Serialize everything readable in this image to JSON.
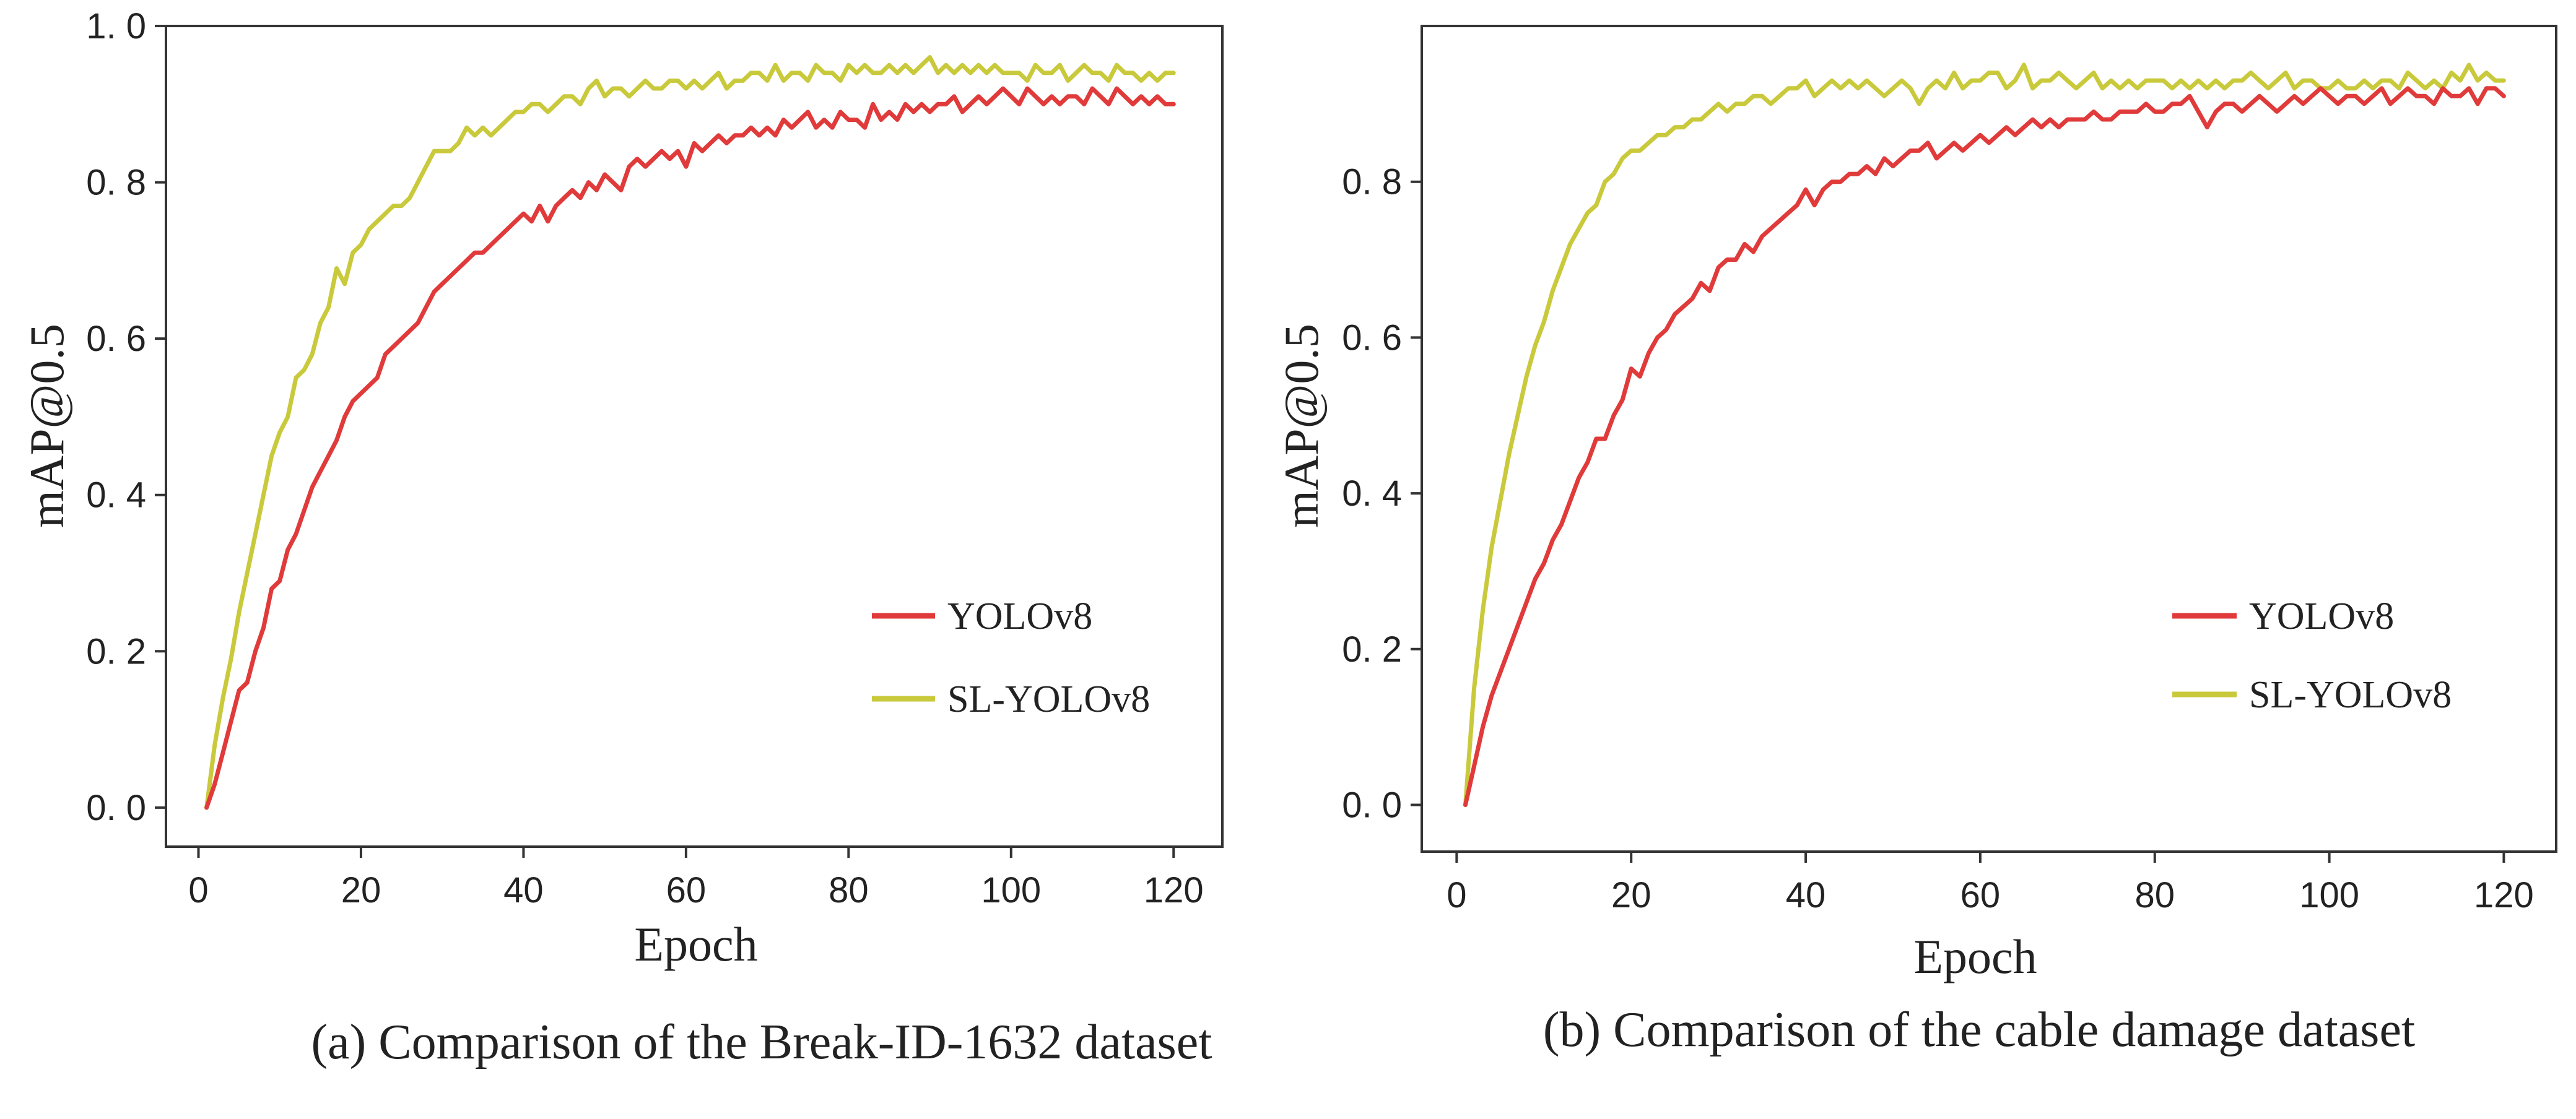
{
  "colors": {
    "yolov8": "#e03a3a",
    "sl_yolov8": "#c9c93c",
    "axis": "#333333"
  },
  "chart_data": [
    {
      "type": "line",
      "caption": "(a) Comparison of the Break-ID-1632 dataset",
      "xlabel": "Epoch",
      "ylabel": "mAP@0.5",
      "xlim": [
        -4,
        126
      ],
      "ylim": [
        -0.05,
        1.0
      ],
      "xticks": [
        0,
        20,
        40,
        60,
        80,
        100,
        120
      ],
      "xtick_labels": [
        "0",
        "20",
        "40",
        "60",
        "80",
        "100",
        "120"
      ],
      "yticks": [
        0.0,
        0.2,
        0.4,
        0.6,
        0.8,
        1.0
      ],
      "ytick_labels": [
        "0. 0",
        "0. 2",
        "0. 4",
        "0. 6",
        "0. 8",
        "1. 0"
      ],
      "grid": false,
      "legend": "center-right",
      "series": [
        {
          "name": "YOLOv8",
          "color": "#e03a3a",
          "x": [
            1,
            2,
            3,
            4,
            5,
            6,
            7,
            8,
            9,
            10,
            11,
            12,
            13,
            14,
            15,
            16,
            17,
            18,
            19,
            20,
            21,
            22,
            23,
            24,
            25,
            26,
            27,
            28,
            29,
            30,
            31,
            32,
            33,
            34,
            35,
            36,
            37,
            38,
            39,
            40,
            41,
            42,
            43,
            44,
            45,
            46,
            47,
            48,
            49,
            50,
            51,
            52,
            53,
            54,
            55,
            56,
            57,
            58,
            59,
            60,
            61,
            62,
            63,
            64,
            65,
            66,
            67,
            68,
            69,
            70,
            71,
            72,
            73,
            74,
            75,
            76,
            77,
            78,
            79,
            80,
            81,
            82,
            83,
            84,
            85,
            86,
            87,
            88,
            89,
            90,
            91,
            92,
            93,
            94,
            95,
            96,
            97,
            98,
            99,
            100,
            101,
            102,
            103,
            104,
            105,
            106,
            107,
            108,
            109,
            110,
            111,
            112,
            113,
            114,
            115,
            116,
            117,
            118,
            119,
            120
          ],
          "y": [
            0.0,
            0.03,
            0.07,
            0.11,
            0.15,
            0.16,
            0.2,
            0.23,
            0.28,
            0.29,
            0.33,
            0.35,
            0.38,
            0.41,
            0.43,
            0.45,
            0.47,
            0.5,
            0.52,
            0.53,
            0.54,
            0.55,
            0.58,
            0.59,
            0.6,
            0.61,
            0.62,
            0.64,
            0.66,
            0.67,
            0.68,
            0.69,
            0.7,
            0.71,
            0.71,
            0.72,
            0.73,
            0.74,
            0.75,
            0.76,
            0.75,
            0.77,
            0.75,
            0.77,
            0.78,
            0.79,
            0.78,
            0.8,
            0.79,
            0.81,
            0.8,
            0.79,
            0.82,
            0.83,
            0.82,
            0.83,
            0.84,
            0.83,
            0.84,
            0.82,
            0.85,
            0.84,
            0.85,
            0.86,
            0.85,
            0.86,
            0.86,
            0.87,
            0.86,
            0.87,
            0.86,
            0.88,
            0.87,
            0.88,
            0.89,
            0.87,
            0.88,
            0.87,
            0.89,
            0.88,
            0.88,
            0.87,
            0.9,
            0.88,
            0.89,
            0.88,
            0.9,
            0.89,
            0.9,
            0.89,
            0.9,
            0.9,
            0.91,
            0.89,
            0.9,
            0.91,
            0.9,
            0.91,
            0.92,
            0.91,
            0.9,
            0.92,
            0.91,
            0.9,
            0.91,
            0.9,
            0.91,
            0.91,
            0.9,
            0.92,
            0.91,
            0.9,
            0.92,
            0.91,
            0.9,
            0.91,
            0.9,
            0.91,
            0.9,
            0.9
          ]
        },
        {
          "name": "SL-YOLOv8",
          "color": "#c9c93c",
          "x": [
            1,
            2,
            3,
            4,
            5,
            6,
            7,
            8,
            9,
            10,
            11,
            12,
            13,
            14,
            15,
            16,
            17,
            18,
            19,
            20,
            21,
            22,
            23,
            24,
            25,
            26,
            27,
            28,
            29,
            30,
            31,
            32,
            33,
            34,
            35,
            36,
            37,
            38,
            39,
            40,
            41,
            42,
            43,
            44,
            45,
            46,
            47,
            48,
            49,
            50,
            51,
            52,
            53,
            54,
            55,
            56,
            57,
            58,
            59,
            60,
            61,
            62,
            63,
            64,
            65,
            66,
            67,
            68,
            69,
            70,
            71,
            72,
            73,
            74,
            75,
            76,
            77,
            78,
            79,
            80,
            81,
            82,
            83,
            84,
            85,
            86,
            87,
            88,
            89,
            90,
            91,
            92,
            93,
            94,
            95,
            96,
            97,
            98,
            99,
            100,
            101,
            102,
            103,
            104,
            105,
            106,
            107,
            108,
            109,
            110,
            111,
            112,
            113,
            114,
            115,
            116,
            117,
            118,
            119,
            120
          ],
          "y": [
            0.0,
            0.08,
            0.14,
            0.19,
            0.25,
            0.3,
            0.35,
            0.4,
            0.45,
            0.48,
            0.5,
            0.55,
            0.56,
            0.58,
            0.62,
            0.64,
            0.69,
            0.67,
            0.71,
            0.72,
            0.74,
            0.75,
            0.76,
            0.77,
            0.77,
            0.78,
            0.8,
            0.82,
            0.84,
            0.84,
            0.84,
            0.85,
            0.87,
            0.86,
            0.87,
            0.86,
            0.87,
            0.88,
            0.89,
            0.89,
            0.9,
            0.9,
            0.89,
            0.9,
            0.91,
            0.91,
            0.9,
            0.92,
            0.93,
            0.91,
            0.92,
            0.92,
            0.91,
            0.92,
            0.93,
            0.92,
            0.92,
            0.93,
            0.93,
            0.92,
            0.93,
            0.92,
            0.93,
            0.94,
            0.92,
            0.93,
            0.93,
            0.94,
            0.94,
            0.93,
            0.95,
            0.93,
            0.94,
            0.94,
            0.93,
            0.95,
            0.94,
            0.94,
            0.93,
            0.95,
            0.94,
            0.95,
            0.94,
            0.94,
            0.95,
            0.94,
            0.95,
            0.94,
            0.95,
            0.96,
            0.94,
            0.95,
            0.94,
            0.95,
            0.94,
            0.95,
            0.94,
            0.95,
            0.94,
            0.94,
            0.94,
            0.93,
            0.95,
            0.94,
            0.94,
            0.95,
            0.93,
            0.94,
            0.95,
            0.94,
            0.94,
            0.93,
            0.95,
            0.94,
            0.94,
            0.93,
            0.94,
            0.93,
            0.94,
            0.94
          ]
        }
      ]
    },
    {
      "type": "line",
      "caption": "(b) Comparison of the cable damage dataset",
      "xlabel": "Epoch",
      "ylabel": "mAP@0.5",
      "xlim": [
        -4,
        126
      ],
      "ylim": [
        -0.06,
        1.0
      ],
      "xticks": [
        0,
        20,
        40,
        60,
        80,
        100,
        120
      ],
      "xtick_labels": [
        "0",
        "20",
        "40",
        "60",
        "80",
        "100",
        "120"
      ],
      "yticks": [
        0.0,
        0.2,
        0.4,
        0.6,
        0.8
      ],
      "ytick_labels": [
        "0. 0",
        "0. 2",
        "0. 4",
        "0. 6",
        "0. 8"
      ],
      "grid": false,
      "legend": "center-right",
      "series": [
        {
          "name": "YOLOv8",
          "color": "#e03a3a",
          "x": [
            1,
            2,
            3,
            4,
            5,
            6,
            7,
            8,
            9,
            10,
            11,
            12,
            13,
            14,
            15,
            16,
            17,
            18,
            19,
            20,
            21,
            22,
            23,
            24,
            25,
            26,
            27,
            28,
            29,
            30,
            31,
            32,
            33,
            34,
            35,
            36,
            37,
            38,
            39,
            40,
            41,
            42,
            43,
            44,
            45,
            46,
            47,
            48,
            49,
            50,
            51,
            52,
            53,
            54,
            55,
            56,
            57,
            58,
            59,
            60,
            61,
            62,
            63,
            64,
            65,
            66,
            67,
            68,
            69,
            70,
            71,
            72,
            73,
            74,
            75,
            76,
            77,
            78,
            79,
            80,
            81,
            82,
            83,
            84,
            85,
            86,
            87,
            88,
            89,
            90,
            91,
            92,
            93,
            94,
            95,
            96,
            97,
            98,
            99,
            100,
            101,
            102,
            103,
            104,
            105,
            106,
            107,
            108,
            109,
            110,
            111,
            112,
            113,
            114,
            115,
            116,
            117,
            118,
            119,
            120
          ],
          "y": [
            0.0,
            0.05,
            0.1,
            0.14,
            0.17,
            0.2,
            0.23,
            0.26,
            0.29,
            0.31,
            0.34,
            0.36,
            0.39,
            0.42,
            0.44,
            0.47,
            0.47,
            0.5,
            0.52,
            0.56,
            0.55,
            0.58,
            0.6,
            0.61,
            0.63,
            0.64,
            0.65,
            0.67,
            0.66,
            0.69,
            0.7,
            0.7,
            0.72,
            0.71,
            0.73,
            0.74,
            0.75,
            0.76,
            0.77,
            0.79,
            0.77,
            0.79,
            0.8,
            0.8,
            0.81,
            0.81,
            0.82,
            0.81,
            0.83,
            0.82,
            0.83,
            0.84,
            0.84,
            0.85,
            0.83,
            0.84,
            0.85,
            0.84,
            0.85,
            0.86,
            0.85,
            0.86,
            0.87,
            0.86,
            0.87,
            0.88,
            0.87,
            0.88,
            0.87,
            0.88,
            0.88,
            0.88,
            0.89,
            0.88,
            0.88,
            0.89,
            0.89,
            0.89,
            0.9,
            0.89,
            0.89,
            0.9,
            0.9,
            0.91,
            0.89,
            0.87,
            0.89,
            0.9,
            0.9,
            0.89,
            0.9,
            0.91,
            0.9,
            0.89,
            0.9,
            0.91,
            0.9,
            0.91,
            0.92,
            0.91,
            0.9,
            0.91,
            0.91,
            0.9,
            0.91,
            0.92,
            0.9,
            0.91,
            0.92,
            0.91,
            0.91,
            0.9,
            0.92,
            0.91,
            0.91,
            0.92,
            0.9,
            0.92,
            0.92,
            0.91
          ]
        },
        {
          "name": "SL-YOLOv8",
          "color": "#c9c93c",
          "x": [
            1,
            2,
            3,
            4,
            5,
            6,
            7,
            8,
            9,
            10,
            11,
            12,
            13,
            14,
            15,
            16,
            17,
            18,
            19,
            20,
            21,
            22,
            23,
            24,
            25,
            26,
            27,
            28,
            29,
            30,
            31,
            32,
            33,
            34,
            35,
            36,
            37,
            38,
            39,
            40,
            41,
            42,
            43,
            44,
            45,
            46,
            47,
            48,
            49,
            50,
            51,
            52,
            53,
            54,
            55,
            56,
            57,
            58,
            59,
            60,
            61,
            62,
            63,
            64,
            65,
            66,
            67,
            68,
            69,
            70,
            71,
            72,
            73,
            74,
            75,
            76,
            77,
            78,
            79,
            80,
            81,
            82,
            83,
            84,
            85,
            86,
            87,
            88,
            89,
            90,
            91,
            92,
            93,
            94,
            95,
            96,
            97,
            98,
            99,
            100,
            101,
            102,
            103,
            104,
            105,
            106,
            107,
            108,
            109,
            110,
            111,
            112,
            113,
            114,
            115,
            116,
            117,
            118,
            119,
            120
          ],
          "y": [
            0.0,
            0.15,
            0.25,
            0.33,
            0.39,
            0.45,
            0.5,
            0.55,
            0.59,
            0.62,
            0.66,
            0.69,
            0.72,
            0.74,
            0.76,
            0.77,
            0.8,
            0.81,
            0.83,
            0.84,
            0.84,
            0.85,
            0.86,
            0.86,
            0.87,
            0.87,
            0.88,
            0.88,
            0.89,
            0.9,
            0.89,
            0.9,
            0.9,
            0.91,
            0.91,
            0.9,
            0.91,
            0.92,
            0.92,
            0.93,
            0.91,
            0.92,
            0.93,
            0.92,
            0.93,
            0.92,
            0.93,
            0.92,
            0.91,
            0.92,
            0.93,
            0.92,
            0.9,
            0.92,
            0.93,
            0.92,
            0.94,
            0.92,
            0.93,
            0.93,
            0.94,
            0.94,
            0.92,
            0.93,
            0.95,
            0.92,
            0.93,
            0.93,
            0.94,
            0.93,
            0.92,
            0.93,
            0.94,
            0.92,
            0.93,
            0.92,
            0.93,
            0.92,
            0.93,
            0.93,
            0.93,
            0.92,
            0.93,
            0.92,
            0.93,
            0.92,
            0.93,
            0.92,
            0.93,
            0.93,
            0.94,
            0.93,
            0.92,
            0.93,
            0.94,
            0.92,
            0.93,
            0.93,
            0.92,
            0.92,
            0.93,
            0.92,
            0.92,
            0.93,
            0.92,
            0.93,
            0.93,
            0.92,
            0.94,
            0.93,
            0.92,
            0.93,
            0.92,
            0.94,
            0.93,
            0.95,
            0.93,
            0.94,
            0.93,
            0.93
          ]
        }
      ]
    }
  ]
}
